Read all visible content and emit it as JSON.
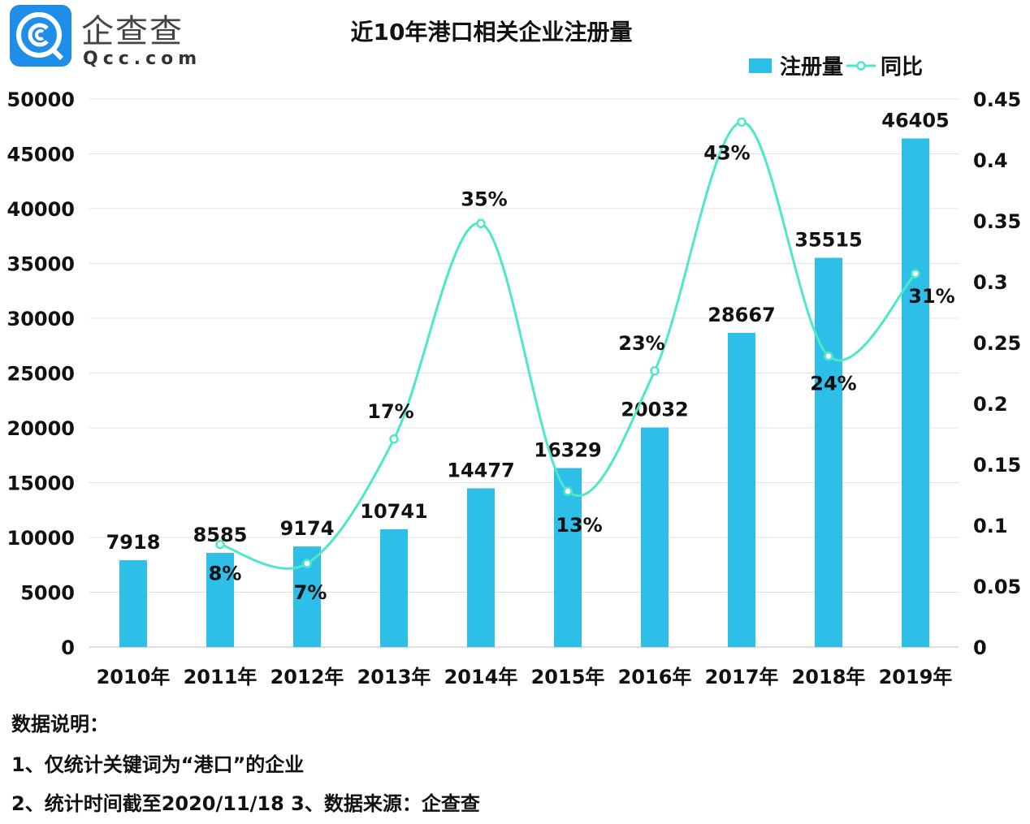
{
  "logo": {
    "name_cn": "企查查",
    "name_en": "Qcc.com"
  },
  "chart_data": {
    "type": "bar+line",
    "title": "近10年港口相关企业注册量",
    "categories": [
      "2010年",
      "2011年",
      "2012年",
      "2013年",
      "2014年",
      "2015年",
      "2016年",
      "2017年",
      "2018年",
      "2019年"
    ],
    "series": [
      {
        "name": "注册量",
        "type": "bar",
        "axis": "left",
        "color": "#2dbfe8",
        "values": [
          7918,
          8585,
          9174,
          10741,
          14477,
          16329,
          20032,
          28667,
          35515,
          46405
        ],
        "labels": [
          "7918",
          "8585",
          "9174",
          "10741",
          "14477",
          "16329",
          "20032",
          "28667",
          "35515",
          "46405"
        ]
      },
      {
        "name": "同比",
        "type": "line",
        "axis": "right",
        "color": "#4de8c8",
        "smooth": true,
        "values": [
          null,
          0.0842,
          0.0686,
          0.1708,
          0.3478,
          0.1279,
          0.2268,
          0.4311,
          0.2389,
          0.3066
        ],
        "labels": [
          null,
          "8%",
          "7%",
          "17%",
          "35%",
          "13%",
          "23%",
          "43%",
          "24%",
          "31%"
        ]
      }
    ],
    "left_axis": {
      "ylim": [
        0,
        50000
      ],
      "ticks": [
        "0",
        "5000",
        "10000",
        "15000",
        "20000",
        "25000",
        "30000",
        "35000",
        "40000",
        "45000",
        "50000"
      ]
    },
    "right_axis": {
      "ylim": [
        0,
        0.45
      ],
      "ticks": [
        "0",
        "0.05",
        "0.1",
        "0.15",
        "0.2",
        "0.25",
        "0.3",
        "0.35",
        "0.4",
        "0.45"
      ]
    },
    "grid": true,
    "legend": "top-right"
  },
  "notes": {
    "heading": "数据说明：",
    "line1": "1、仅统计关键词为“港口”的企业",
    "line2": "2、统计时间截至2020/11/18   3、数据来源：企查查"
  }
}
